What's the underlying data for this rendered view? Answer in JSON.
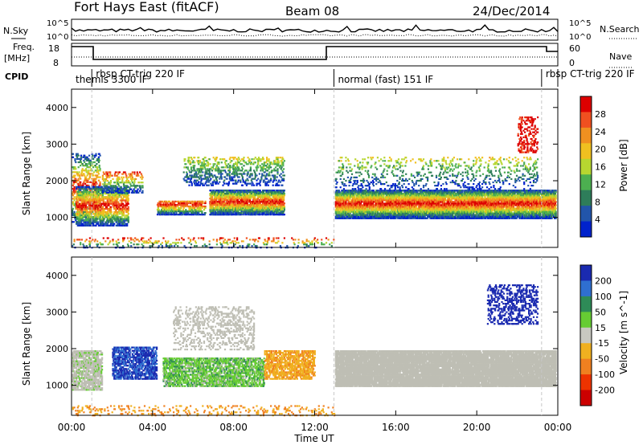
{
  "header": {
    "station": "Fort Hays East (fitACF)",
    "beam": "Beam 08",
    "date": "24/Dec/2014"
  },
  "top_panels": {
    "nsky_label": "N.Sky",
    "nsearch_label": "N.Search",
    "left_ticks": [
      "10^5",
      "10^0"
    ],
    "right_ticks": [
      "10^5",
      "10^0"
    ],
    "freq_label_1": "Freq.",
    "freq_label_2": "[MHz]",
    "freq_ticks": [
      "18",
      "8"
    ],
    "nave_label": "Nave",
    "nave_ticks": [
      "60",
      "0"
    ],
    "cpid_label": "CPID"
  },
  "cpid_segments": [
    {
      "label": "themis 3300 IF",
      "start_h": 0.0,
      "end_h": 1.0
    },
    {
      "label": "rbsp CT-trig 220 IF",
      "start_h": 1.0,
      "end_h": 12.95
    },
    {
      "label": "normal (fast) 151 IF",
      "start_h": 12.95,
      "end_h": 23.2
    },
    {
      "label": "rbsp CT-trig 220 IF",
      "start_h": 23.2,
      "end_h": 24.0
    }
  ],
  "axes": {
    "x_ticks": [
      "00:00",
      "04:00",
      "08:00",
      "12:00",
      "16:00",
      "20:00",
      "00:00"
    ],
    "xlabel": "Time UT",
    "ylabel": "Slant Range [km]",
    "y_ticks": [
      "1000",
      "2000",
      "3000",
      "4000"
    ]
  },
  "colors": {
    "power_scale": [
      "#0022cc",
      "#2255aa",
      "#2e7d5a",
      "#4caf50",
      "#b7d630",
      "#f0c020",
      "#f09020",
      "#f05020",
      "#dd0000"
    ],
    "velocity_scale": [
      "#1a2ab0",
      "#2f6fd0",
      "#2e8b57",
      "#66cc33",
      "#c8c8c0",
      "#f0b020",
      "#f08020",
      "#ee3300",
      "#cc0000"
    ],
    "ground_scatter": "#bebeb4"
  },
  "chart_data": [
    {
      "type": "heatmap",
      "title": "",
      "xlabel": "Time UT",
      "ylabel": "Slant Range [km]",
      "xlim": [
        0,
        24
      ],
      "ylim": [
        180,
        4500
      ],
      "colorbar": {
        "label": "Power [dB]",
        "range": [
          0,
          30
        ],
        "ticks": [
          "4",
          "8",
          "12",
          "16",
          "20",
          "24",
          "28"
        ]
      },
      "features": [
        {
          "time_h": [
            0,
            2.8
          ],
          "range_km": [
            800,
            1900
          ],
          "level": "high"
        },
        {
          "time_h": [
            4.2,
            6.5
          ],
          "range_km": [
            1100,
            1500
          ],
          "level": "medium"
        },
        {
          "time_h": [
            6.8,
            10.5
          ],
          "range_km": [
            1100,
            1800
          ],
          "level": "high"
        },
        {
          "time_h": [
            13.0,
            23.9
          ],
          "range_km": [
            1000,
            1800
          ],
          "level": "high"
        },
        {
          "time_h": [
            22.0,
            23.0
          ],
          "range_km": [
            2800,
            3800
          ],
          "level": "high"
        }
      ]
    },
    {
      "type": "heatmap",
      "title": "",
      "xlabel": "Time UT",
      "ylabel": "Slant Range [km]",
      "xlim": [
        0,
        24
      ],
      "ylim": [
        180,
        4500
      ],
      "colorbar": {
        "label": "Velocity [m s^-1]",
        "ticks": [
          "200",
          "100",
          "50",
          "15",
          "-15",
          "-50",
          "-100",
          "-200"
        ]
      },
      "features": [
        {
          "time_h": [
            0,
            1.5
          ],
          "range_km": [
            900,
            2000
          ],
          "level": "ground scatter"
        },
        {
          "time_h": [
            2.0,
            4.2
          ],
          "range_km": [
            1200,
            2100
          ],
          "level": "positive (blue)"
        },
        {
          "time_h": [
            4.5,
            9.5
          ],
          "range_km": [
            1000,
            1800
          ],
          "level": "mixed green"
        },
        {
          "time_h": [
            9.5,
            12.0
          ],
          "range_km": [
            1200,
            2000
          ],
          "level": "negative (orange)"
        },
        {
          "time_h": [
            13.0,
            23.9
          ],
          "range_km": [
            1000,
            2000
          ],
          "level": "ground scatter"
        },
        {
          "time_h": [
            20.5,
            23.0
          ],
          "range_km": [
            2700,
            3800
          ],
          "level": "positive (blue)"
        }
      ]
    }
  ]
}
